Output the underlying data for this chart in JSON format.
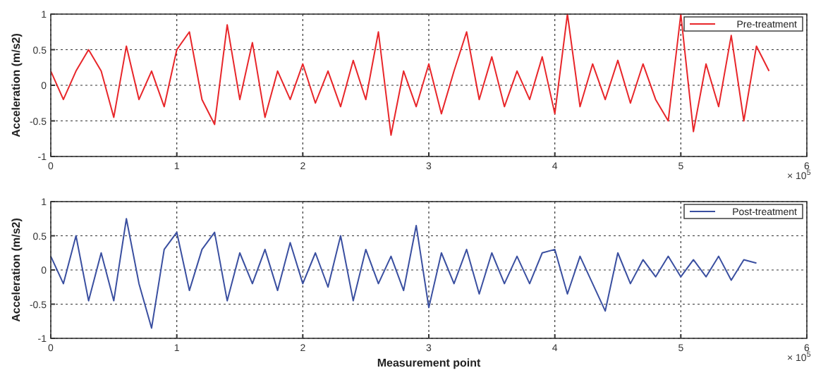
{
  "chart_data": [
    {
      "type": "line",
      "ylabel": "Acceleration (m/s2)",
      "xlim": [
        0,
        6
      ],
      "xticks": [
        0,
        1,
        2,
        3,
        4,
        5,
        6
      ],
      "ylim": [
        -1,
        1
      ],
      "yticks": [
        -1,
        -0.5,
        0,
        0.5,
        1
      ],
      "grid": true,
      "legend": "top right",
      "annotations": [
        "× 10$^{5}$"
      ],
      "series": [
        {
          "name": "Pre-treatment",
          "color": "#e8262a",
          "x": [
            0,
            0.1,
            0.2,
            0.3,
            0.4,
            0.5,
            0.6,
            0.7,
            0.8,
            0.9,
            1,
            1.1,
            1.2,
            1.3,
            1.4,
            1.5,
            1.6,
            1.7,
            1.8,
            1.9,
            2,
            2.1,
            2.2,
            2.3,
            2.4,
            2.5,
            2.6,
            2.7,
            2.8,
            2.9,
            3,
            3.1,
            3.2,
            3.3,
            3.4,
            3.5,
            3.6,
            3.7,
            3.8,
            3.9,
            4,
            4.1,
            4.2,
            4.3,
            4.4,
            4.5,
            4.6,
            4.7,
            4.8,
            4.9,
            5,
            5.1,
            5.2,
            5.3,
            5.4,
            5.5,
            5.6,
            5.7
          ],
          "values": [
            0.2,
            -0.2,
            0.2,
            0.5,
            0.2,
            -0.45,
            0.55,
            -0.2,
            0.2,
            -0.3,
            0.5,
            0.75,
            -0.2,
            -0.55,
            0.85,
            -0.2,
            0.6,
            -0.45,
            0.2,
            -0.2,
            0.3,
            -0.25,
            0.2,
            -0.3,
            0.35,
            -0.2,
            0.75,
            -0.7,
            0.2,
            -0.3,
            0.3,
            -0.4,
            0.2,
            0.75,
            -0.2,
            0.4,
            -0.3,
            0.2,
            -0.2,
            0.4,
            -0.4,
            1,
            -0.3,
            0.3,
            -0.2,
            0.35,
            -0.25,
            0.3,
            -0.2,
            -0.5,
            1,
            -0.65,
            0.3,
            -0.3,
            0.7,
            -0.5,
            0.55,
            0.2
          ]
        }
      ]
    },
    {
      "type": "line",
      "xlabel": "Measurement point",
      "ylabel": "Acceleration (m/s2)",
      "xlim": [
        0,
        6
      ],
      "xticks": [
        0,
        1,
        2,
        3,
        4,
        5,
        6
      ],
      "ylim": [
        -1,
        1
      ],
      "yticks": [
        -1,
        -0.5,
        0,
        0.5,
        1
      ],
      "grid": true,
      "legend": "top right",
      "annotations": [
        "× 10$^{5}$"
      ],
      "series": [
        {
          "name": "Post-treatment",
          "color": "#3a4fa0",
          "x": [
            0,
            0.1,
            0.2,
            0.3,
            0.4,
            0.5,
            0.6,
            0.7,
            0.8,
            0.9,
            1,
            1.1,
            1.2,
            1.3,
            1.4,
            1.5,
            1.6,
            1.7,
            1.8,
            1.9,
            2,
            2.1,
            2.2,
            2.3,
            2.4,
            2.5,
            2.6,
            2.7,
            2.8,
            2.9,
            3,
            3.1,
            3.2,
            3.3,
            3.4,
            3.5,
            3.6,
            3.7,
            3.8,
            3.9,
            4,
            4.1,
            4.2,
            4.3,
            4.4,
            4.5,
            4.6,
            4.7,
            4.8,
            4.9,
            5,
            5.1,
            5.2,
            5.3,
            5.4,
            5.5,
            5.6
          ],
          "values": [
            0.2,
            -0.2,
            0.5,
            -0.45,
            0.25,
            -0.45,
            0.75,
            -0.2,
            -0.85,
            0.3,
            0.55,
            -0.3,
            0.3,
            0.55,
            -0.45,
            0.25,
            -0.2,
            0.3,
            -0.3,
            0.4,
            -0.2,
            0.25,
            -0.25,
            0.5,
            -0.45,
            0.3,
            -0.2,
            0.2,
            -0.3,
            0.65,
            -0.55,
            0.25,
            -0.2,
            0.3,
            -0.35,
            0.25,
            -0.2,
            0.2,
            -0.2,
            0.25,
            0.3,
            -0.35,
            0.2,
            -0.2,
            -0.6,
            0.25,
            -0.2,
            0.15,
            -0.1,
            0.2,
            -0.1,
            0.15,
            -0.1,
            0.2,
            -0.15,
            0.15,
            0.1
          ]
        }
      ]
    }
  ]
}
